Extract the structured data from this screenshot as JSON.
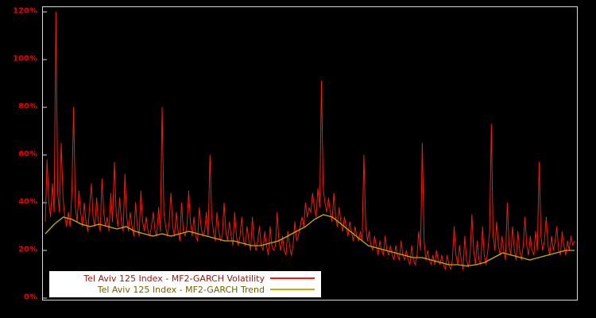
{
  "chart_data": {
    "type": "line",
    "title": "",
    "xlabel": "",
    "ylabel": "",
    "ylim": [
      0,
      120
    ],
    "grid": false,
    "background_color": "#000000",
    "plot_border_color": "#d8d8d8",
    "axis_label_color": "#e60000",
    "legend_position": "bottom-left",
    "legend_background": "#ffffff",
    "yticks": [
      {
        "label": "0%",
        "value": 0
      },
      {
        "label": "20%",
        "value": 20
      },
      {
        "label": "40%",
        "value": 40
      },
      {
        "label": "60%",
        "value": 60
      },
      {
        "label": "80%",
        "value": 80
      },
      {
        "label": "100%",
        "value": 100
      },
      {
        "label": "120%",
        "value": 120
      }
    ],
    "series": [
      {
        "name": "Tel Aviv 125 Index - MF2-GARCH Volatility",
        "color": "#ed1c10",
        "legend_text_color": "#8f1a10",
        "line_width": 1,
        "values": [
          32,
          58,
          40,
          34,
          48,
          36,
          120,
          44,
          36,
          65,
          42,
          34,
          30,
          36,
          30,
          44,
          80,
          38,
          32,
          45,
          36,
          30,
          40,
          32,
          28,
          38,
          48,
          34,
          30,
          42,
          32,
          28,
          50,
          36,
          30,
          34,
          28,
          44,
          32,
          57,
          36,
          30,
          42,
          32,
          28,
          52,
          34,
          28,
          36,
          30,
          26,
          40,
          30,
          26,
          45,
          32,
          28,
          34,
          28,
          26,
          30,
          36,
          28,
          26,
          38,
          28,
          80,
          36,
          30,
          26,
          32,
          44,
          30,
          26,
          36,
          28,
          24,
          40,
          28,
          26,
          30,
          45,
          32,
          26,
          34,
          26,
          24,
          38,
          30,
          26,
          28,
          36,
          26,
          60,
          34,
          28,
          24,
          36,
          28,
          24,
          26,
          40,
          28,
          24,
          32,
          26,
          22,
          36,
          26,
          22,
          26,
          34,
          24,
          22,
          30,
          24,
          20,
          34,
          24,
          20,
          24,
          30,
          22,
          20,
          28,
          22,
          18,
          30,
          22,
          20,
          22,
          36,
          24,
          20,
          26,
          20,
          18,
          28,
          22,
          18,
          22,
          32,
          24,
          26,
          30,
          34,
          30,
          40,
          34,
          38,
          36,
          44,
          38,
          34,
          46,
          38,
          91,
          46,
          40,
          36,
          42,
          36,
          32,
          44,
          34,
          30,
          38,
          32,
          28,
          34,
          30,
          26,
          32,
          28,
          24,
          30,
          26,
          24,
          28,
          24,
          60,
          30,
          24,
          28,
          22,
          20,
          26,
          22,
          18,
          24,
          20,
          18,
          26,
          20,
          18,
          22,
          18,
          16,
          22,
          18,
          16,
          24,
          18,
          16,
          20,
          16,
          14,
          22,
          16,
          14,
          18,
          28,
          20,
          65,
          24,
          16,
          20,
          16,
          14,
          18,
          14,
          20,
          16,
          14,
          18,
          14,
          12,
          18,
          14,
          12,
          16,
          30,
          18,
          14,
          22,
          16,
          12,
          26,
          16,
          13,
          18,
          35,
          20,
          14,
          24,
          16,
          14,
          30,
          18,
          14,
          20,
          28,
          73,
          26,
          20,
          32,
          22,
          18,
          26,
          20,
          16,
          40,
          22,
          18,
          30,
          20,
          16,
          28,
          20,
          16,
          22,
          34,
          22,
          18,
          26,
          20,
          18,
          28,
          20,
          57,
          26,
          20,
          24,
          34,
          22,
          18,
          26,
          20,
          24,
          30,
          20,
          18,
          28,
          22,
          18,
          24,
          20,
          26,
          22,
          24
        ]
      },
      {
        "name": "Tel Aviv 125 Index - MF2-GARCH Trend",
        "color": "#c9ad00",
        "legend_text_color": "#6e6400",
        "line_width": 1.3,
        "values": [
          27,
          31,
          34,
          33,
          31,
          30,
          31,
          30,
          29,
          30,
          28,
          27,
          26,
          27,
          26,
          27,
          28,
          27,
          26,
          25,
          24,
          24,
          23,
          22,
          22,
          23,
          24,
          26,
          28,
          30,
          33,
          35,
          34,
          31,
          28,
          25,
          22,
          21,
          20,
          19,
          18,
          17,
          17,
          16,
          15,
          14,
          14,
          13.5,
          14,
          15,
          17,
          19,
          18,
          17,
          16,
          17,
          18,
          19,
          20,
          20
        ]
      }
    ]
  }
}
